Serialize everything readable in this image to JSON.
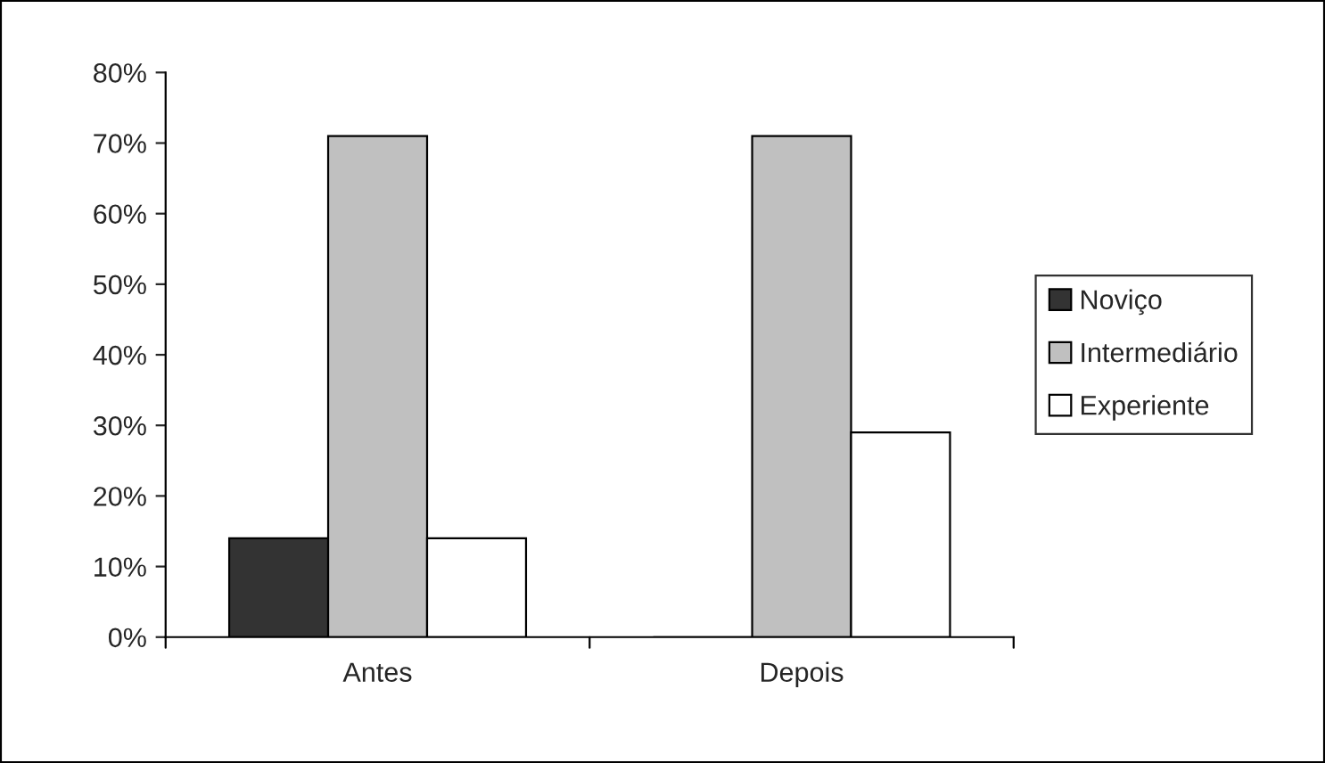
{
  "chart_data": {
    "type": "bar",
    "categories": [
      "Antes",
      "Depois"
    ],
    "series": [
      {
        "name": "Noviço",
        "color": "#333333",
        "values": [
          14,
          0
        ]
      },
      {
        "name": "Intermediário",
        "color": "#c0c0c0",
        "values": [
          71,
          71
        ]
      },
      {
        "name": "Experiente",
        "color": "#ffffff",
        "values": [
          14,
          29
        ]
      }
    ],
    "ylim": [
      0,
      80
    ],
    "yticks": [
      {
        "value": 0,
        "label": "0%"
      },
      {
        "value": 10,
        "label": "10%"
      },
      {
        "value": 20,
        "label": "20%"
      },
      {
        "value": 30,
        "label": "30%"
      },
      {
        "value": 40,
        "label": "40%"
      },
      {
        "value": 50,
        "label": "50%"
      },
      {
        "value": 60,
        "label": "60%"
      },
      {
        "value": 70,
        "label": "70%"
      },
      {
        "value": 80,
        "label": "80%"
      }
    ],
    "grid": false,
    "legend": "right"
  }
}
